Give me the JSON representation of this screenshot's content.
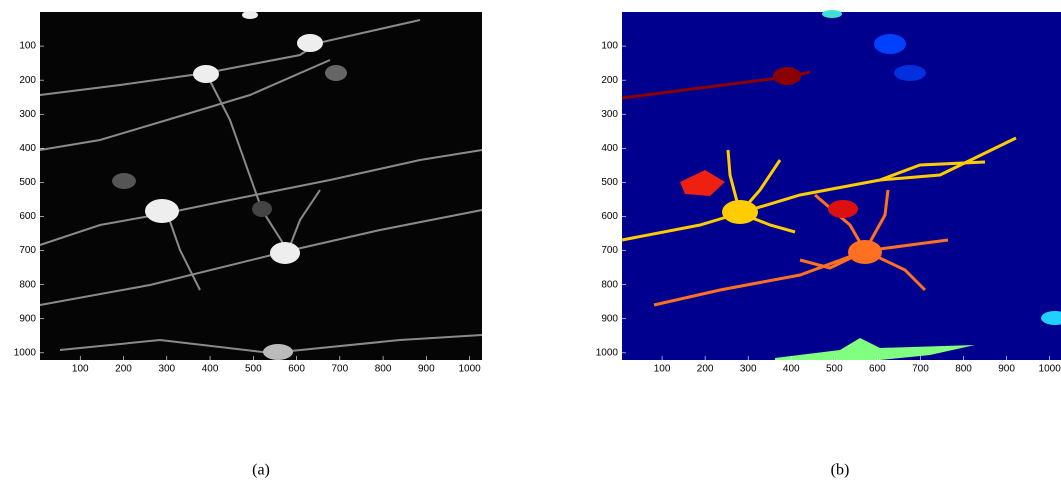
{
  "panels": [
    {
      "xlim": [
        0,
        1024
      ],
      "ylim": [
        0,
        1024
      ],
      "xticks": [
        100,
        200,
        300,
        400,
        500,
        600,
        700,
        800,
        900,
        1000
      ],
      "yticks": [
        100,
        200,
        300,
        400,
        500,
        600,
        700,
        800,
        900,
        1000
      ],
      "caption": "(a)"
    },
    {
      "xlim": [
        0,
        1024
      ],
      "ylim": [
        0,
        1024
      ],
      "xticks": [
        100,
        200,
        300,
        400,
        500,
        600,
        700,
        800,
        900,
        1000
      ],
      "yticks": [
        100,
        200,
        300,
        400,
        500,
        600,
        700,
        800,
        900,
        1000
      ],
      "caption": "(b)"
    }
  ]
}
